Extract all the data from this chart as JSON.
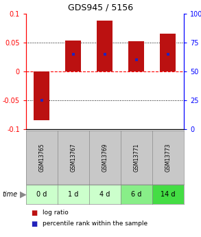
{
  "title": "GDS945 / 5156",
  "samples": [
    "GSM13765",
    "GSM13767",
    "GSM13769",
    "GSM13771",
    "GSM13773"
  ],
  "time_labels": [
    "0 d",
    "1 d",
    "4 d",
    "6 d",
    "14 d"
  ],
  "log_ratios": [
    -0.085,
    0.054,
    0.088,
    0.052,
    0.065
  ],
  "percentile_ranks": [
    0.25,
    0.65,
    0.65,
    0.6,
    0.65
  ],
  "ylim": [
    -0.1,
    0.1
  ],
  "yticks_left": [
    -0.1,
    -0.05,
    0.0,
    0.05,
    0.1
  ],
  "yticks_right": [
    0,
    25,
    50,
    75,
    100
  ],
  "bar_color": "#bb1111",
  "blue_color": "#2222bb",
  "bar_width": 0.5,
  "time_row_colors": [
    "#ccffcc",
    "#ccffcc",
    "#ccffcc",
    "#88ee88",
    "#44dd44"
  ],
  "sample_row_color": "#c8c8c8",
  "legend_red": "log ratio",
  "legend_blue": "percentile rank within the sample",
  "bg_color": "#ffffff",
  "title_fontsize": 9,
  "tick_fontsize": 7,
  "sample_fontsize": 5.5,
  "time_fontsize": 7,
  "legend_fontsize": 6.5
}
